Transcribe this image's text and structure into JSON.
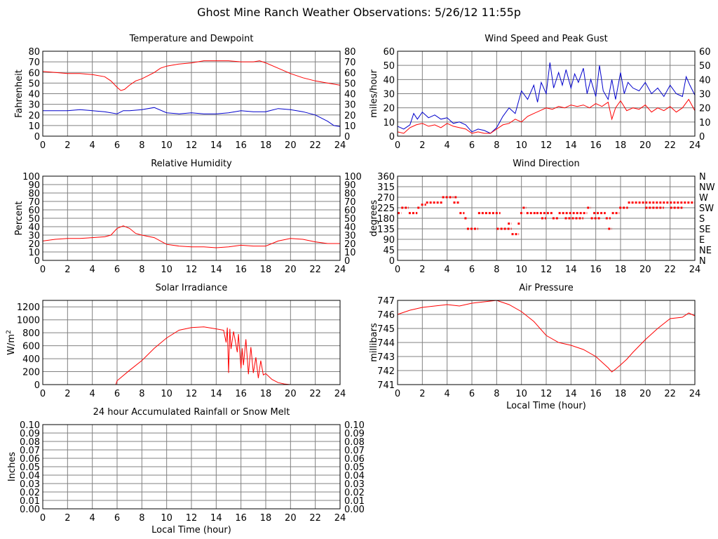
{
  "page_title": "Ghost Mine Ranch Weather Observations: 5/26/12 11:55p",
  "colors": {
    "red": "#ff0000",
    "blue": "#0000cc",
    "grid": "#808080",
    "frame": "#000000"
  },
  "chart_data": [
    {
      "id": "temp",
      "type": "line",
      "title": "Temperature and Dewpoint",
      "ylabel": "Fahrenheit",
      "xlabel": "",
      "xlim": [
        0,
        24
      ],
      "ylim": [
        0,
        80
      ],
      "x_ticks": [
        "0",
        "2",
        "4",
        "6",
        "8",
        "10",
        "12",
        "14",
        "16",
        "18",
        "20",
        "22",
        "24"
      ],
      "y_ticks": [
        "0",
        "10",
        "20",
        "30",
        "40",
        "50",
        "60",
        "70",
        "80"
      ],
      "right_ticks": [
        "0",
        "10",
        "20",
        "30",
        "40",
        "50",
        "60",
        "70",
        "80"
      ],
      "grid": true,
      "series": [
        {
          "color": "red",
          "x": [
            0,
            1,
            2,
            3,
            4,
            5,
            5.5,
            6,
            6.3,
            6.6,
            7,
            7.5,
            8,
            9,
            9.5,
            10,
            11,
            12,
            13,
            14,
            15,
            16,
            17,
            17.5,
            18,
            19,
            20,
            21,
            22,
            23,
            24
          ],
          "y": [
            61,
            60,
            59,
            59,
            58,
            56,
            52,
            46,
            43,
            44,
            48,
            52,
            54,
            60,
            64,
            66,
            68,
            69,
            71,
            71,
            71,
            70,
            70,
            71,
            69,
            64,
            59,
            55,
            52,
            50,
            48
          ]
        },
        {
          "color": "blue",
          "x": [
            0,
            1,
            2,
            3,
            4,
            5,
            6,
            6.5,
            7,
            8,
            9,
            10,
            11,
            12,
            13,
            14,
            15,
            16,
            17,
            18,
            19,
            20,
            21,
            22,
            23,
            23.5,
            24
          ],
          "y": [
            24,
            24,
            24,
            25,
            24,
            23,
            21,
            24,
            24,
            25,
            27,
            22,
            21,
            22,
            21,
            21,
            22,
            24,
            23,
            23,
            26,
            25,
            23,
            20,
            14,
            10,
            9
          ]
        }
      ]
    },
    {
      "id": "rh",
      "type": "line",
      "title": "Relative Humidity",
      "ylabel": "Percent",
      "xlabel": "",
      "xlim": [
        0,
        24
      ],
      "ylim": [
        0,
        100
      ],
      "x_ticks": [
        "0",
        "2",
        "4",
        "6",
        "8",
        "10",
        "12",
        "14",
        "16",
        "18",
        "20",
        "22",
        "24"
      ],
      "y_ticks": [
        "0",
        "10",
        "20",
        "30",
        "40",
        "50",
        "60",
        "70",
        "80",
        "90",
        "100"
      ],
      "right_ticks": [
        "0",
        "10",
        "20",
        "30",
        "40",
        "50",
        "60",
        "70",
        "80",
        "90",
        "100"
      ],
      "grid": true,
      "series": [
        {
          "color": "red",
          "x": [
            0,
            1,
            2,
            3,
            4,
            5,
            5.5,
            6,
            6.5,
            7,
            7.5,
            8,
            9,
            10,
            11,
            12,
            13,
            14,
            15,
            16,
            17,
            18,
            19,
            20,
            21,
            22,
            23,
            24
          ],
          "y": [
            23,
            25,
            26,
            26,
            27,
            28,
            30,
            38,
            41,
            38,
            32,
            30,
            27,
            19,
            17,
            16,
            16,
            15,
            16,
            18,
            17,
            17,
            23,
            26,
            25,
            22,
            20,
            20
          ]
        }
      ]
    },
    {
      "id": "solar",
      "type": "line",
      "title": "Solar Irradiance",
      "ylabel": "W/m",
      "ylabel_sup": "2",
      "xlabel": "",
      "xlim": [
        0,
        24
      ],
      "ylim": [
        0,
        1300
      ],
      "x_ticks": [
        "0",
        "2",
        "4",
        "6",
        "8",
        "10",
        "12",
        "14",
        "16",
        "18",
        "20",
        "22",
        "24"
      ],
      "y_ticks": [
        "0",
        "200",
        "400",
        "600",
        "800",
        "1000",
        "1200"
      ],
      "y_tick_values": [
        0,
        200,
        400,
        600,
        800,
        1000,
        1200
      ],
      "right_ticks": [],
      "grid": true,
      "series": [
        {
          "color": "red",
          "x": [
            0,
            5.9,
            6,
            7,
            8,
            9,
            10,
            11,
            12,
            13,
            14,
            14.6,
            14.8,
            14.9,
            15,
            15.1,
            15.2,
            15.4,
            15.5,
            15.7,
            15.8,
            16,
            16.1,
            16.2,
            16.4,
            16.6,
            16.8,
            17,
            17.2,
            17.4,
            17.6,
            17.8,
            18,
            18.5,
            19,
            19.5,
            20,
            24
          ],
          "y": [
            0,
            0,
            60,
            220,
            370,
            560,
            720,
            840,
            880,
            890,
            860,
            840,
            650,
            880,
            180,
            860,
            550,
            820,
            720,
            500,
            780,
            250,
            560,
            300,
            700,
            160,
            580,
            180,
            420,
            100,
            370,
            150,
            170,
            80,
            30,
            10,
            0,
            0
          ]
        }
      ]
    },
    {
      "id": "rain",
      "type": "line",
      "title": "24 hour Accumulated Rainfall or Snow Melt",
      "ylabel": "Inches",
      "xlabel": "Local Time (hour)",
      "xlim": [
        0,
        24
      ],
      "ylim": [
        0,
        0.1
      ],
      "x_ticks": [
        "0",
        "2",
        "4",
        "6",
        "8",
        "10",
        "12",
        "14",
        "16",
        "18",
        "20",
        "22",
        "24"
      ],
      "y_ticks": [
        "0.00",
        "0.01",
        "0.02",
        "0.03",
        "0.04",
        "0.05",
        "0.06",
        "0.07",
        "0.08",
        "0.09",
        "0.10"
      ],
      "right_ticks": [
        "0.00",
        "0.01",
        "0.02",
        "0.03",
        "0.04",
        "0.05",
        "0.06",
        "0.07",
        "0.08",
        "0.09",
        "0.10"
      ],
      "grid": true,
      "series": [
        {
          "color": "red",
          "x": [
            0,
            24
          ],
          "y": [
            0,
            0
          ]
        }
      ]
    },
    {
      "id": "wind",
      "type": "line",
      "title": "Wind Speed and Peak Gust",
      "ylabel": "miles/hour",
      "xlabel": "",
      "xlim": [
        0,
        24
      ],
      "ylim": [
        0,
        60
      ],
      "x_ticks": [
        "0",
        "2",
        "4",
        "6",
        "8",
        "10",
        "12",
        "14",
        "16",
        "18",
        "20",
        "22",
        "24"
      ],
      "y_ticks": [
        "0",
        "10",
        "20",
        "30",
        "40",
        "50",
        "60"
      ],
      "right_ticks": [
        "0",
        "10",
        "20",
        "30",
        "40",
        "50",
        "60"
      ],
      "grid": true,
      "series": [
        {
          "color": "blue",
          "x": [
            0,
            0.5,
            1,
            1.3,
            1.6,
            2,
            2.5,
            3,
            3.5,
            4,
            4.5,
            5,
            5.5,
            6,
            6.5,
            7,
            7.5,
            8,
            8.5,
            9,
            9.5,
            10,
            10.5,
            11,
            11.3,
            11.6,
            12,
            12.3,
            12.6,
            13,
            13.3,
            13.6,
            14,
            14.3,
            14.6,
            15,
            15.3,
            15.6,
            16,
            16.3,
            16.6,
            17,
            17.3,
            17.6,
            18,
            18.3,
            18.6,
            19,
            19.5,
            20,
            20.5,
            21,
            21.5,
            22,
            22.5,
            23,
            23.3,
            23.6,
            24
          ],
          "y": [
            7,
            5,
            8,
            16,
            12,
            17,
            13,
            15,
            12,
            13,
            9,
            10,
            8,
            3,
            5,
            4,
            2,
            6,
            14,
            20,
            16,
            32,
            26,
            36,
            24,
            38,
            30,
            52,
            34,
            45,
            36,
            47,
            34,
            44,
            38,
            48,
            30,
            40,
            28,
            50,
            32,
            26,
            40,
            26,
            45,
            30,
            38,
            34,
            32,
            38,
            30,
            34,
            28,
            36,
            30,
            28,
            42,
            36,
            29
          ]
        },
        {
          "color": "red",
          "x": [
            0,
            0.5,
            1,
            1.5,
            2,
            2.5,
            3,
            3.5,
            4,
            4.5,
            5,
            5.5,
            6,
            6.5,
            7,
            7.5,
            8,
            8.5,
            9,
            9.5,
            10,
            10.5,
            11,
            11.5,
            12,
            12.5,
            13,
            13.5,
            14,
            14.5,
            15,
            15.5,
            16,
            16.5,
            17,
            17.3,
            17.6,
            18,
            18.5,
            19,
            19.5,
            20,
            20.5,
            21,
            21.5,
            22,
            22.5,
            23,
            23.5,
            24
          ],
          "y": [
            3,
            2,
            6,
            8,
            9,
            7,
            8,
            6,
            9,
            7,
            6,
            5,
            2,
            3,
            2,
            2,
            5,
            8,
            9,
            12,
            10,
            14,
            16,
            18,
            20,
            19,
            21,
            20,
            22,
            21,
            22,
            20,
            23,
            21,
            24,
            12,
            20,
            25,
            18,
            20,
            19,
            22,
            17,
            20,
            18,
            21,
            17,
            20,
            26,
            18
          ]
        }
      ]
    },
    {
      "id": "dir",
      "type": "scatter",
      "title": "Wind Direction",
      "ylabel": "degrees",
      "xlabel": "",
      "xlim": [
        0,
        24
      ],
      "ylim": [
        0,
        360
      ],
      "x_ticks": [
        "0",
        "2",
        "4",
        "6",
        "8",
        "10",
        "12",
        "14",
        "16",
        "18",
        "20",
        "22",
        "24"
      ],
      "y_ticks": [
        "0",
        "45",
        "90",
        "135",
        "180",
        "225",
        "270",
        "315",
        "360"
      ],
      "y_tick_values": [
        0,
        45,
        90,
        135,
        180,
        225,
        270,
        315,
        360
      ],
      "right_ticks": [
        "N",
        "NE",
        "E",
        "SE",
        "S",
        "SW",
        "W",
        "NW",
        "N"
      ],
      "grid": true,
      "series": [
        {
          "color": "red",
          "segments": [
            [
              0.0,
              0.3,
              202
            ],
            [
              0.3,
              0.9,
              225
            ],
            [
              0.9,
              1.6,
              202
            ],
            [
              1.6,
              1.9,
              225
            ],
            [
              1.9,
              2.3,
              238
            ],
            [
              2.3,
              3.6,
              247
            ],
            [
              3.6,
              4.5,
              270
            ],
            [
              4.5,
              5.0,
              247
            ],
            [
              4.6,
              4.8,
              270
            ],
            [
              5.0,
              5.4,
              202
            ],
            [
              5.4,
              5.6,
              180
            ],
            [
              5.6,
              6.5,
              135
            ],
            [
              6.5,
              8.3,
              202
            ],
            [
              8.0,
              8.2,
              135
            ],
            [
              8.3,
              9.2,
              135
            ],
            [
              8.9,
              9.2,
              157
            ],
            [
              9.2,
              9.8,
              112
            ],
            [
              9.7,
              9.9,
              157
            ],
            [
              9.9,
              10.2,
              202
            ],
            [
              10.1,
              10.4,
              225
            ],
            [
              10.4,
              11.2,
              202
            ],
            [
              11.2,
              12.5,
              202
            ],
            [
              11.6,
              12.0,
              180
            ],
            [
              12.5,
              13.0,
              180
            ],
            [
              13.0,
              15.3,
              202
            ],
            [
              13.5,
              15.0,
              180
            ],
            [
              15.3,
              15.6,
              225
            ],
            [
              15.6,
              16.4,
              180
            ],
            [
              15.8,
              16.8,
              202
            ],
            [
              16.8,
              17.2,
              180
            ],
            [
              17.0,
              17.3,
              135
            ],
            [
              17.3,
              17.9,
              202
            ],
            [
              17.9,
              18.6,
              225
            ],
            [
              18.6,
              20.0,
              247
            ],
            [
              20.0,
              24.0,
              247
            ],
            [
              20.0,
              21.5,
              225
            ],
            [
              22.0,
              23.0,
              225
            ]
          ]
        }
      ]
    },
    {
      "id": "pres",
      "type": "line",
      "title": "Air Pressure",
      "ylabel": "millibars",
      "xlabel": "Local Time (hour)",
      "xlim": [
        0,
        24
      ],
      "ylim": [
        741,
        747
      ],
      "x_ticks": [
        "0",
        "2",
        "4",
        "6",
        "8",
        "10",
        "12",
        "14",
        "16",
        "18",
        "20",
        "22",
        "24"
      ],
      "y_ticks": [
        "741",
        "742",
        "743",
        "744",
        "745",
        "746",
        "747"
      ],
      "right_ticks": [],
      "grid": true,
      "series": [
        {
          "color": "red",
          "x": [
            0,
            1,
            2,
            3,
            4,
            5,
            6,
            7,
            8,
            9,
            10,
            11,
            12,
            13,
            14,
            15,
            16,
            16.5,
            17,
            17.3,
            17.6,
            18,
            18.5,
            19,
            20,
            21,
            22,
            23,
            23.5,
            24
          ],
          "y": [
            746,
            746.3,
            746.5,
            746.6,
            746.7,
            746.6,
            746.8,
            746.9,
            747,
            746.7,
            746.2,
            745.5,
            744.5,
            744,
            743.8,
            743.5,
            743,
            742.6,
            742.2,
            741.9,
            742.1,
            742.4,
            742.8,
            743.3,
            744.2,
            745,
            745.7,
            745.8,
            746.1,
            745.9
          ]
        }
      ]
    }
  ]
}
